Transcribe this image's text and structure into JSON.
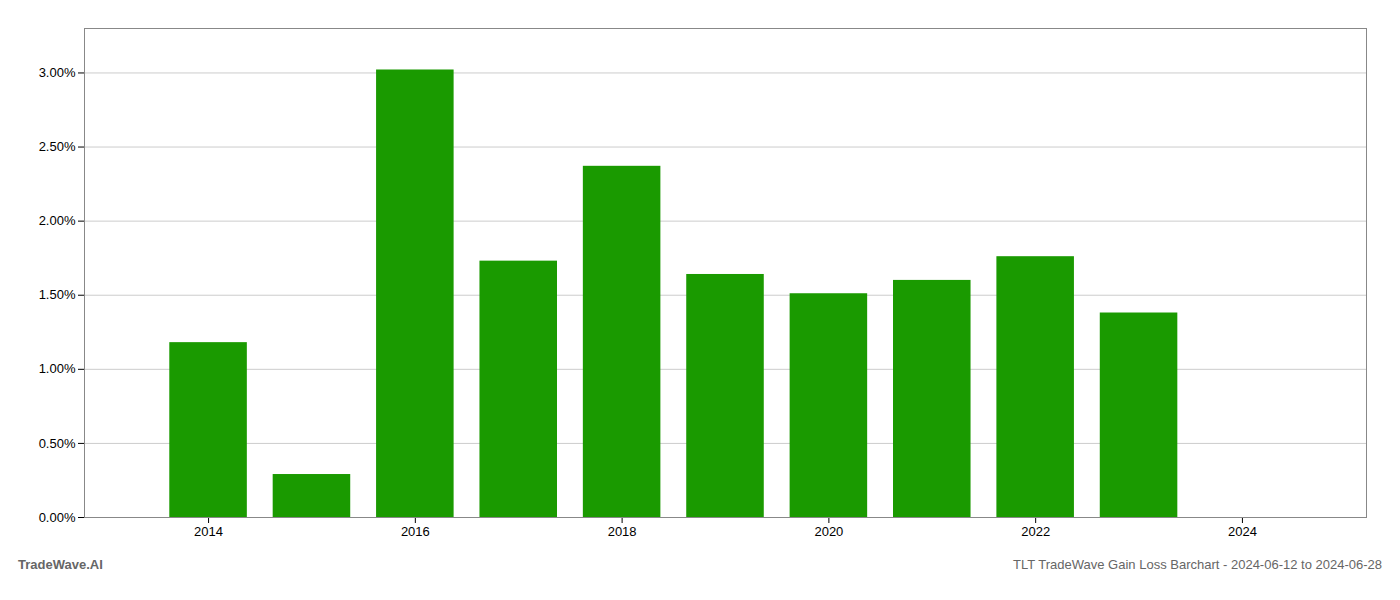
{
  "chart_data": {
    "type": "bar",
    "x": [
      2014,
      2015,
      2016,
      2017,
      2018,
      2019,
      2020,
      2021,
      2022,
      2023
    ],
    "values": [
      0.0118,
      0.0029,
      0.0302,
      0.0173,
      0.0237,
      0.0164,
      0.0151,
      0.016,
      0.0176,
      0.0138
    ],
    "color": "#1a9a00",
    "xlim": [
      2012.8,
      2025.2
    ],
    "xticks": [
      2014,
      2016,
      2018,
      2020,
      2022,
      2024
    ],
    "ylim": [
      0.0,
      0.033
    ],
    "yticks": [
      {
        "value": 0.0,
        "label": "0.00%"
      },
      {
        "value": 0.005,
        "label": "0.50%"
      },
      {
        "value": 0.01,
        "label": "1.00%"
      },
      {
        "value": 0.015,
        "label": "1.50%"
      },
      {
        "value": 0.02,
        "label": "2.00%"
      },
      {
        "value": 0.025,
        "label": "2.50%"
      },
      {
        "value": 0.03,
        "label": "3.00%"
      }
    ],
    "grid": true,
    "annotations": [
      "TradeWave.AI",
      "TLT TradeWave Gain Loss Barchart - 2024-06-12 to 2024-06-28"
    ]
  }
}
